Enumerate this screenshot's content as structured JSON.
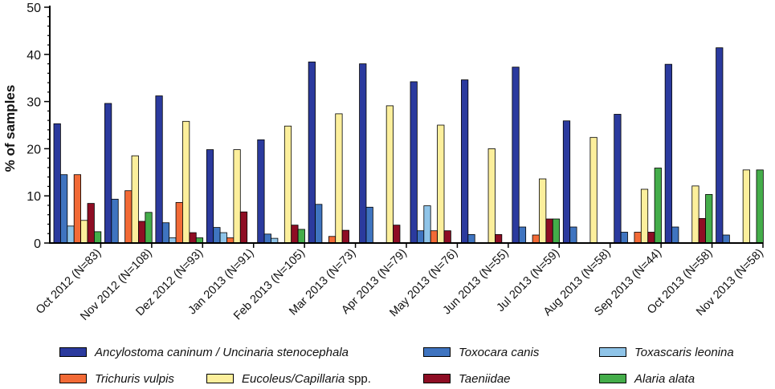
{
  "chart_data": {
    "type": "bar",
    "title": "",
    "xlabel": "",
    "ylabel": "% of samples",
    "ylim": [
      0,
      50
    ],
    "yticks": [
      "0",
      "10",
      "20",
      "30",
      "40",
      "50"
    ],
    "categories": [
      "Oct 2012  (N=83)",
      "Nov 2012 (N=108)",
      "Dez 2012 (N=93)",
      "Jan 2013 (N=91)",
      "Feb 2013 (N=105)",
      "Mar 2013 (N=73)",
      "Apr 2013 (N=79)",
      "May 2013 (N=76)",
      "Jun 2013 (N=55)",
      "Jul 2013 (N=59)",
      "Aug 2013 (N=58)",
      "Sep 2013 (N=44)",
      "Oct 2013 (N=58)",
      "Nov 2013 (N=58)"
    ],
    "series": [
      {
        "name": "Ancylostoma caninum / Uncinaria stenocephala",
        "color": "#2b3a9e",
        "values": [
          25.3,
          29.6,
          31.2,
          19.8,
          21.9,
          38.4,
          38.0,
          34.2,
          34.6,
          37.3,
          25.9,
          27.3,
          37.9,
          41.4
        ]
      },
      {
        "name": "Toxocara canis",
        "color": "#3f74c0",
        "values": [
          14.5,
          9.3,
          4.3,
          3.3,
          1.9,
          8.2,
          7.6,
          2.6,
          1.8,
          3.4,
          3.4,
          2.3,
          3.4,
          1.7
        ]
      },
      {
        "name": "Toxascaris leonina",
        "color": "#8fc4e8",
        "values": [
          3.6,
          0,
          1.1,
          2.2,
          1.0,
          0,
          0,
          7.9,
          0,
          0,
          0,
          0,
          0,
          0
        ]
      },
      {
        "name": "Trichuris vulpis",
        "color": "#f26a36",
        "values": [
          14.5,
          11.1,
          8.6,
          1.1,
          0,
          1.4,
          0,
          2.6,
          0,
          1.7,
          0,
          2.3,
          0,
          0
        ]
      },
      {
        "name": "Eucoleus/Capillaria spp.",
        "color": "#fcef9c",
        "values": [
          4.8,
          18.5,
          25.8,
          19.8,
          24.8,
          27.4,
          29.1,
          25.0,
          20.0,
          13.6,
          22.4,
          11.4,
          12.1,
          15.5
        ]
      },
      {
        "name": "Taeniidae",
        "color": "#8e0d24",
        "values": [
          8.4,
          4.6,
          2.2,
          6.6,
          3.8,
          2.7,
          3.8,
          2.6,
          1.8,
          5.1,
          0,
          2.3,
          5.2,
          0
        ]
      },
      {
        "name": "Alaria alata",
        "color": "#44ad4a",
        "values": [
          2.4,
          6.5,
          1.1,
          0,
          2.9,
          0,
          0,
          0,
          0,
          5.1,
          0,
          15.9,
          10.3,
          15.5
        ]
      }
    ],
    "legend_position": "bottom",
    "legend": [
      {
        "text": "Ancylostoma caninum / Uncinaria stenocephala",
        "suffix": "",
        "italic": true,
        "color": "#2b3a9e"
      },
      {
        "text": "Toxocara canis",
        "suffix": "",
        "italic": true,
        "color": "#3f74c0"
      },
      {
        "text": "Toxascaris leonina",
        "suffix": "",
        "italic": true,
        "color": "#8fc4e8"
      },
      {
        "text": "Trichuris vulpis",
        "suffix": "",
        "italic": true,
        "color": "#f26a36"
      },
      {
        "text": "Eucoleus/Capillaria",
        "suffix": " spp.",
        "italic": true,
        "color": "#fcef9c"
      },
      {
        "text": "Taeniidae",
        "suffix": "",
        "italic": false,
        "color": "#8e0d24"
      },
      {
        "text": "Alaria alata",
        "suffix": "",
        "italic": true,
        "color": "#44ad4a"
      }
    ]
  }
}
